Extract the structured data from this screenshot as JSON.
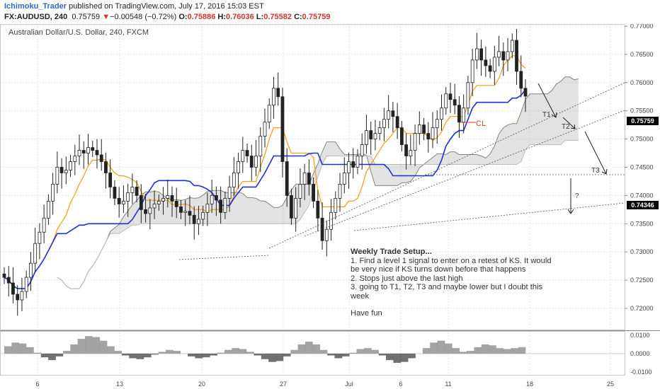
{
  "header": {
    "author": "Ichimoku_Trader",
    "published": " published on TradingView.com, July 17, 2016 15:03 EST",
    "symbol": "FX:AUDUSD, 240",
    "last": "0.75759",
    "arrow": "▼",
    "change": "−0.00548 (−0.72%)",
    "o_label": "O:",
    "o": "0.75886",
    "h_label": "H:",
    "h": "0.76036",
    "l_label": "L:",
    "l": "0.75582",
    "c_label": "C:",
    "c": "0.75759"
  },
  "chart_data": [
    {
      "type": "candlestick",
      "title": "Australian Dollar/U.S. Dollar, 240, FXCM",
      "x_tick_labels": [
        "6",
        "13",
        "20",
        "27",
        "Jul",
        "6",
        "11",
        "18",
        "25"
      ],
      "y_tick_labels": [
        "0.77000",
        "0.76500",
        "0.76000",
        "0.75500",
        "0.75000",
        "0.74500",
        "0.74000",
        "0.73500",
        "0.73000",
        "0.72500",
        "0.72000"
      ],
      "ylim": [
        0.717,
        0.771
      ],
      "grid": true,
      "current_price": "0.75759",
      "target_price": "0.74346",
      "overlays": [
        "Tenkan-sen",
        "Kijun-sen",
        "Senkou Span A",
        "Senkou Span B",
        "Chikou Span",
        "Kumo cloud"
      ],
      "series_close": [
        0.7255,
        0.7245,
        0.7225,
        0.7215,
        0.723,
        0.7255,
        0.728,
        0.7315,
        0.7335,
        0.736,
        0.739,
        0.742,
        0.745,
        0.744,
        0.7445,
        0.746,
        0.747,
        0.748,
        0.7475,
        0.7485,
        0.748,
        0.7472,
        0.746,
        0.744,
        0.7415,
        0.7395,
        0.7385,
        0.739,
        0.7405,
        0.7415,
        0.74,
        0.7375,
        0.7368,
        0.7378,
        0.7385,
        0.739,
        0.7395,
        0.74,
        0.739,
        0.738,
        0.737,
        0.7372,
        0.7365,
        0.735,
        0.7358,
        0.737,
        0.7385,
        0.74,
        0.7392,
        0.737,
        0.7395,
        0.7415,
        0.744,
        0.746,
        0.748,
        0.747,
        0.745,
        0.747,
        0.7505,
        0.753,
        0.756,
        0.759,
        0.7575,
        0.746,
        0.74,
        0.736,
        0.7395,
        0.742,
        0.744,
        0.742,
        0.739,
        0.736,
        0.732,
        0.734,
        0.737,
        0.7395,
        0.742,
        0.744,
        0.746,
        0.745,
        0.747,
        0.749,
        0.7515,
        0.75,
        0.751,
        0.752,
        0.7535,
        0.755,
        0.754,
        0.752,
        0.749,
        0.747,
        0.748,
        0.751,
        0.7525,
        0.751,
        0.75,
        0.752,
        0.7535,
        0.7555,
        0.758,
        0.757,
        0.756,
        0.753,
        0.7555,
        0.76,
        0.764,
        0.766,
        0.764,
        0.763,
        0.762,
        0.7645,
        0.7655,
        0.764,
        0.7655,
        0.7675,
        0.762,
        0.759,
        0.7576
      ],
      "oscillator": {
        "y_tick_labels": [
          "0.0100",
          "0.0000",
          "-0.0100"
        ],
        "ylim": [
          -0.0115,
          0.0115
        ],
        "values": [
          0.004,
          0.006,
          0.0055,
          0.0035,
          0.0005,
          -0.002,
          -0.0035,
          -0.0015,
          0.0015,
          0.005,
          0.008,
          0.0095,
          0.009,
          0.007,
          0.004,
          0.0015,
          -0.001,
          -0.0025,
          -0.003,
          -0.002,
          -0.0005,
          0.001,
          0.002,
          0.0015,
          0.0,
          -0.0015,
          -0.0025,
          -0.002,
          -0.001,
          0.0005,
          0.002,
          0.003,
          0.0025,
          0.001,
          -0.001,
          -0.003,
          -0.0045,
          -0.004,
          -0.0015,
          0.002,
          0.005,
          0.0065,
          0.005,
          0.002,
          -0.001,
          -0.0025,
          -0.0015,
          0.0005,
          0.0025,
          0.003,
          0.002,
          -0.001,
          -0.0035,
          -0.005,
          -0.0045,
          -0.0025,
          0.0,
          0.003,
          0.006,
          0.007,
          0.0055,
          0.003,
          0.001,
          0.0015,
          0.0035,
          0.005,
          0.0045,
          0.003,
          0.0025,
          0.003,
          0.0035
        ]
      }
    }
  ],
  "annotations": {
    "cl": "CL",
    "t1": "T1",
    "t2": "T2",
    "t3": "T3",
    "question": "?"
  },
  "note": {
    "title": "Weekly Trade Setup...",
    "l1": "1. Find a level 1 signal to enter on a retest of KS. It would",
    "l2": "be very nice if KS turns down before that happens",
    "l3": "2. Stops just above the last high",
    "l4": "3. going to T1, T2, T3 and maybe lower but I doubt this",
    "l5": "week",
    "l6": "Have fun"
  },
  "colors": {
    "tenkan": "#f39c12",
    "kijun": "#1f2fd6",
    "span_a": "#7a8d6f",
    "span_b": "#bdbdbd",
    "cloud": "#8a8a8a",
    "candle": "#222222",
    "cl_text": "#e23a2e"
  }
}
